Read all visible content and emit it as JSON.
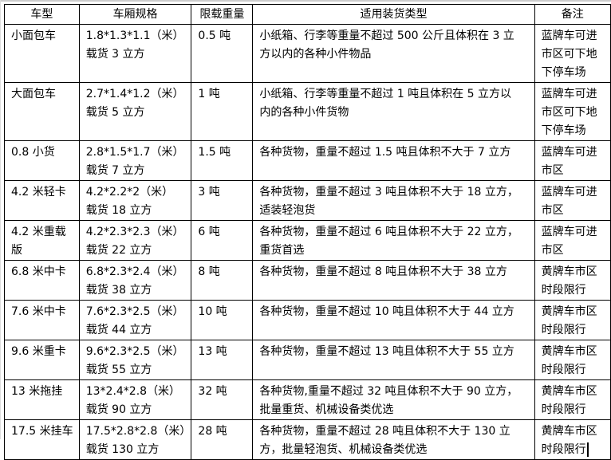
{
  "table": {
    "headers": [
      "车型",
      "车厢规格",
      "限载重量",
      "适用装货类型",
      "备注"
    ],
    "rows": [
      {
        "type": [
          "小面包车"
        ],
        "spec": [
          "1.8*1.3*1.1（米）",
          "载货 3 立方"
        ],
        "load": [
          "0.5 吨"
        ],
        "cargo": [
          "小纸箱、行李等重量不超过 500 公斤且体积在 3 立",
          "方以内的各种小件物品"
        ],
        "note": [
          "蓝牌车可进",
          "市区可下地",
          "下停车场"
        ]
      },
      {
        "type": [
          "大面包车"
        ],
        "spec": [
          "2.7*1.4*1.2（米）",
          "载货 5 立方"
        ],
        "load": [
          "1 吨"
        ],
        "cargo": [
          "小纸箱、行李等重量不超过 1 吨且体积在 5 立方以",
          "内的各种小件货物"
        ],
        "note": [
          "蓝牌车可进",
          "市区可下地",
          "下停车场"
        ]
      },
      {
        "type": [
          "0.8 小货"
        ],
        "spec": [
          "2.8*1.5*1.7（米）",
          "载货 7 立方"
        ],
        "load": [
          "1.5 吨"
        ],
        "cargo": [
          "各种货物，重量不超过 1.5 吨且体积不大于 7 立方"
        ],
        "note": [
          "蓝牌车可进",
          "市区"
        ]
      },
      {
        "type": [
          "4.2 米轻卡"
        ],
        "spec": [
          "4.2*2.2*2（米）",
          "载货 18 立方"
        ],
        "load": [
          "3 吨"
        ],
        "cargo": [
          "各种货物，重量不超过 3 吨且体积不大于 18 立方，",
          "适装轻泡货"
        ],
        "note": [
          "蓝牌车可进",
          "市区"
        ]
      },
      {
        "type": [
          "4.2 米重载",
          "版"
        ],
        "spec": [
          "4.2*2.3*2.3（米）",
          "载货 22 立方"
        ],
        "load": [
          "6 吨"
        ],
        "cargo": [
          "各种货物，重量不超过 6 吨且体积不大于 22 立方，",
          "重货首选"
        ],
        "note": [
          "蓝牌车可进",
          "市区"
        ]
      },
      {
        "type": [
          "6.8 米中卡"
        ],
        "spec": [
          "6.8*2.3*2.4（米）",
          "载货 38 立方"
        ],
        "load": [
          "8 吨"
        ],
        "cargo": [
          "各种货物，重量不超过 8 吨且体积不大于 38 立方"
        ],
        "note": [
          "黄牌车市区",
          "时段限行"
        ]
      },
      {
        "type": [
          "7.6 米中卡"
        ],
        "spec": [
          "7.6*2.3*2.5（米）",
          "载货 44 立方"
        ],
        "load": [
          "10 吨"
        ],
        "cargo": [
          "各种货物，重量不超过 10 吨且体积不大于 44 立方"
        ],
        "note": [
          "黄牌车市区",
          "时段限行"
        ]
      },
      {
        "type": [
          "9.6 米重卡"
        ],
        "spec": [
          "9.6*2.3*2.5（米）",
          "载货 55 立方"
        ],
        "load": [
          "13 吨"
        ],
        "cargo": [
          "各种货物，重量不超过 13 吨且体积不大于 55 立方"
        ],
        "note": [
          "黄牌车市区",
          "时段限行"
        ]
      },
      {
        "type": [
          "13 米拖挂"
        ],
        "spec": [
          "13*2.4*2.8（米）",
          "载货 90 立方"
        ],
        "load": [
          "32 吨"
        ],
        "cargo": [
          "各种货物,重量不超过 32 吨且体积不大于 90 立方，",
          "批量重货、机械设备类优选"
        ],
        "note": [
          "黄牌车市区",
          "时段限行"
        ]
      },
      {
        "type": [
          "17.5 米挂车"
        ],
        "spec": [
          "17.5*2.8*2.8（米）",
          "载货 130 立方"
        ],
        "load": [
          "28 吨"
        ],
        "cargo": [
          "各种货物，重量不超过 28 吨且体积不大于 130 立",
          "方，批量轻泡货、机械设备类优选"
        ],
        "note": [
          "黄牌车市区",
          "时段限行"
        ]
      }
    ]
  }
}
